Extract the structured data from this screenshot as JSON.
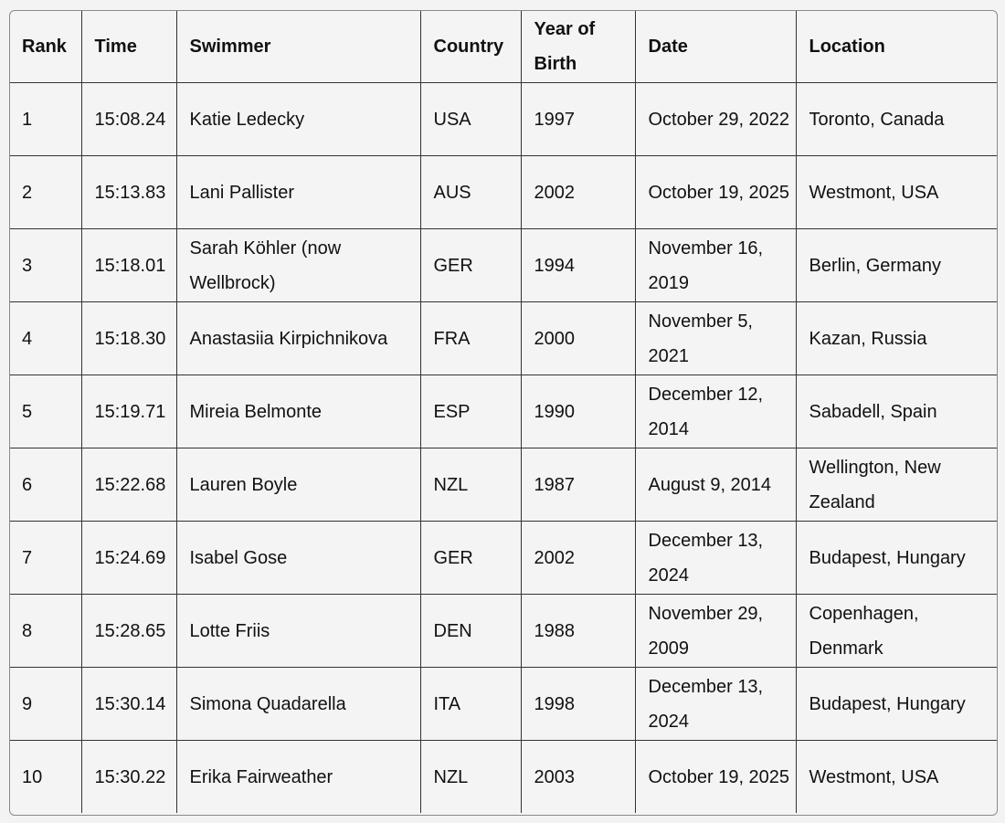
{
  "table": {
    "headers": [
      "Rank",
      "Time",
      "Swimmer",
      "Country",
      "Year of Birth",
      "Date",
      "Location"
    ],
    "rows": [
      [
        "1",
        "15:08.24",
        "Katie Ledecky",
        "USA",
        "1997",
        "October 29, 2022",
        "Toronto, Canada"
      ],
      [
        "2",
        "15:13.83",
        "Lani Pallister",
        "AUS",
        "2002",
        "October 19, 2025",
        "Westmont, USA"
      ],
      [
        "3",
        "15:18.01",
        "Sarah Köhler (now Wellbrock)",
        "GER",
        "1994",
        "November 16, 2019",
        "Berlin, Germany"
      ],
      [
        "4",
        "15:18.30",
        "Anastasiia Kirpichnikova",
        "FRA",
        "2000",
        "November 5, 2021",
        "Kazan, Russia"
      ],
      [
        "5",
        "15:19.71",
        "Mireia Belmonte",
        "ESP",
        "1990",
        "December 12, 2014",
        "Sabadell, Spain"
      ],
      [
        "6",
        "15:22.68",
        "Lauren Boyle",
        "NZL",
        "1987",
        "August 9, 2014",
        "Wellington, New Zealand"
      ],
      [
        "7",
        "15:24.69",
        "Isabel Gose",
        "GER",
        "2002",
        "December 13, 2024",
        "Budapest, Hungary"
      ],
      [
        "8",
        "15:28.65",
        "Lotte Friis",
        "DEN",
        "1988",
        "November 29, 2009",
        "Copenhagen, Denmark"
      ],
      [
        "9",
        "15:30.14",
        "Simona Quadarella",
        "ITA",
        "1998",
        "December 13, 2024",
        "Budapest, Hungary"
      ],
      [
        "10",
        "15:30.22",
        "Erika Fairweather",
        "NZL",
        "2003",
        "October 19, 2025",
        "Westmont, USA"
      ]
    ]
  }
}
